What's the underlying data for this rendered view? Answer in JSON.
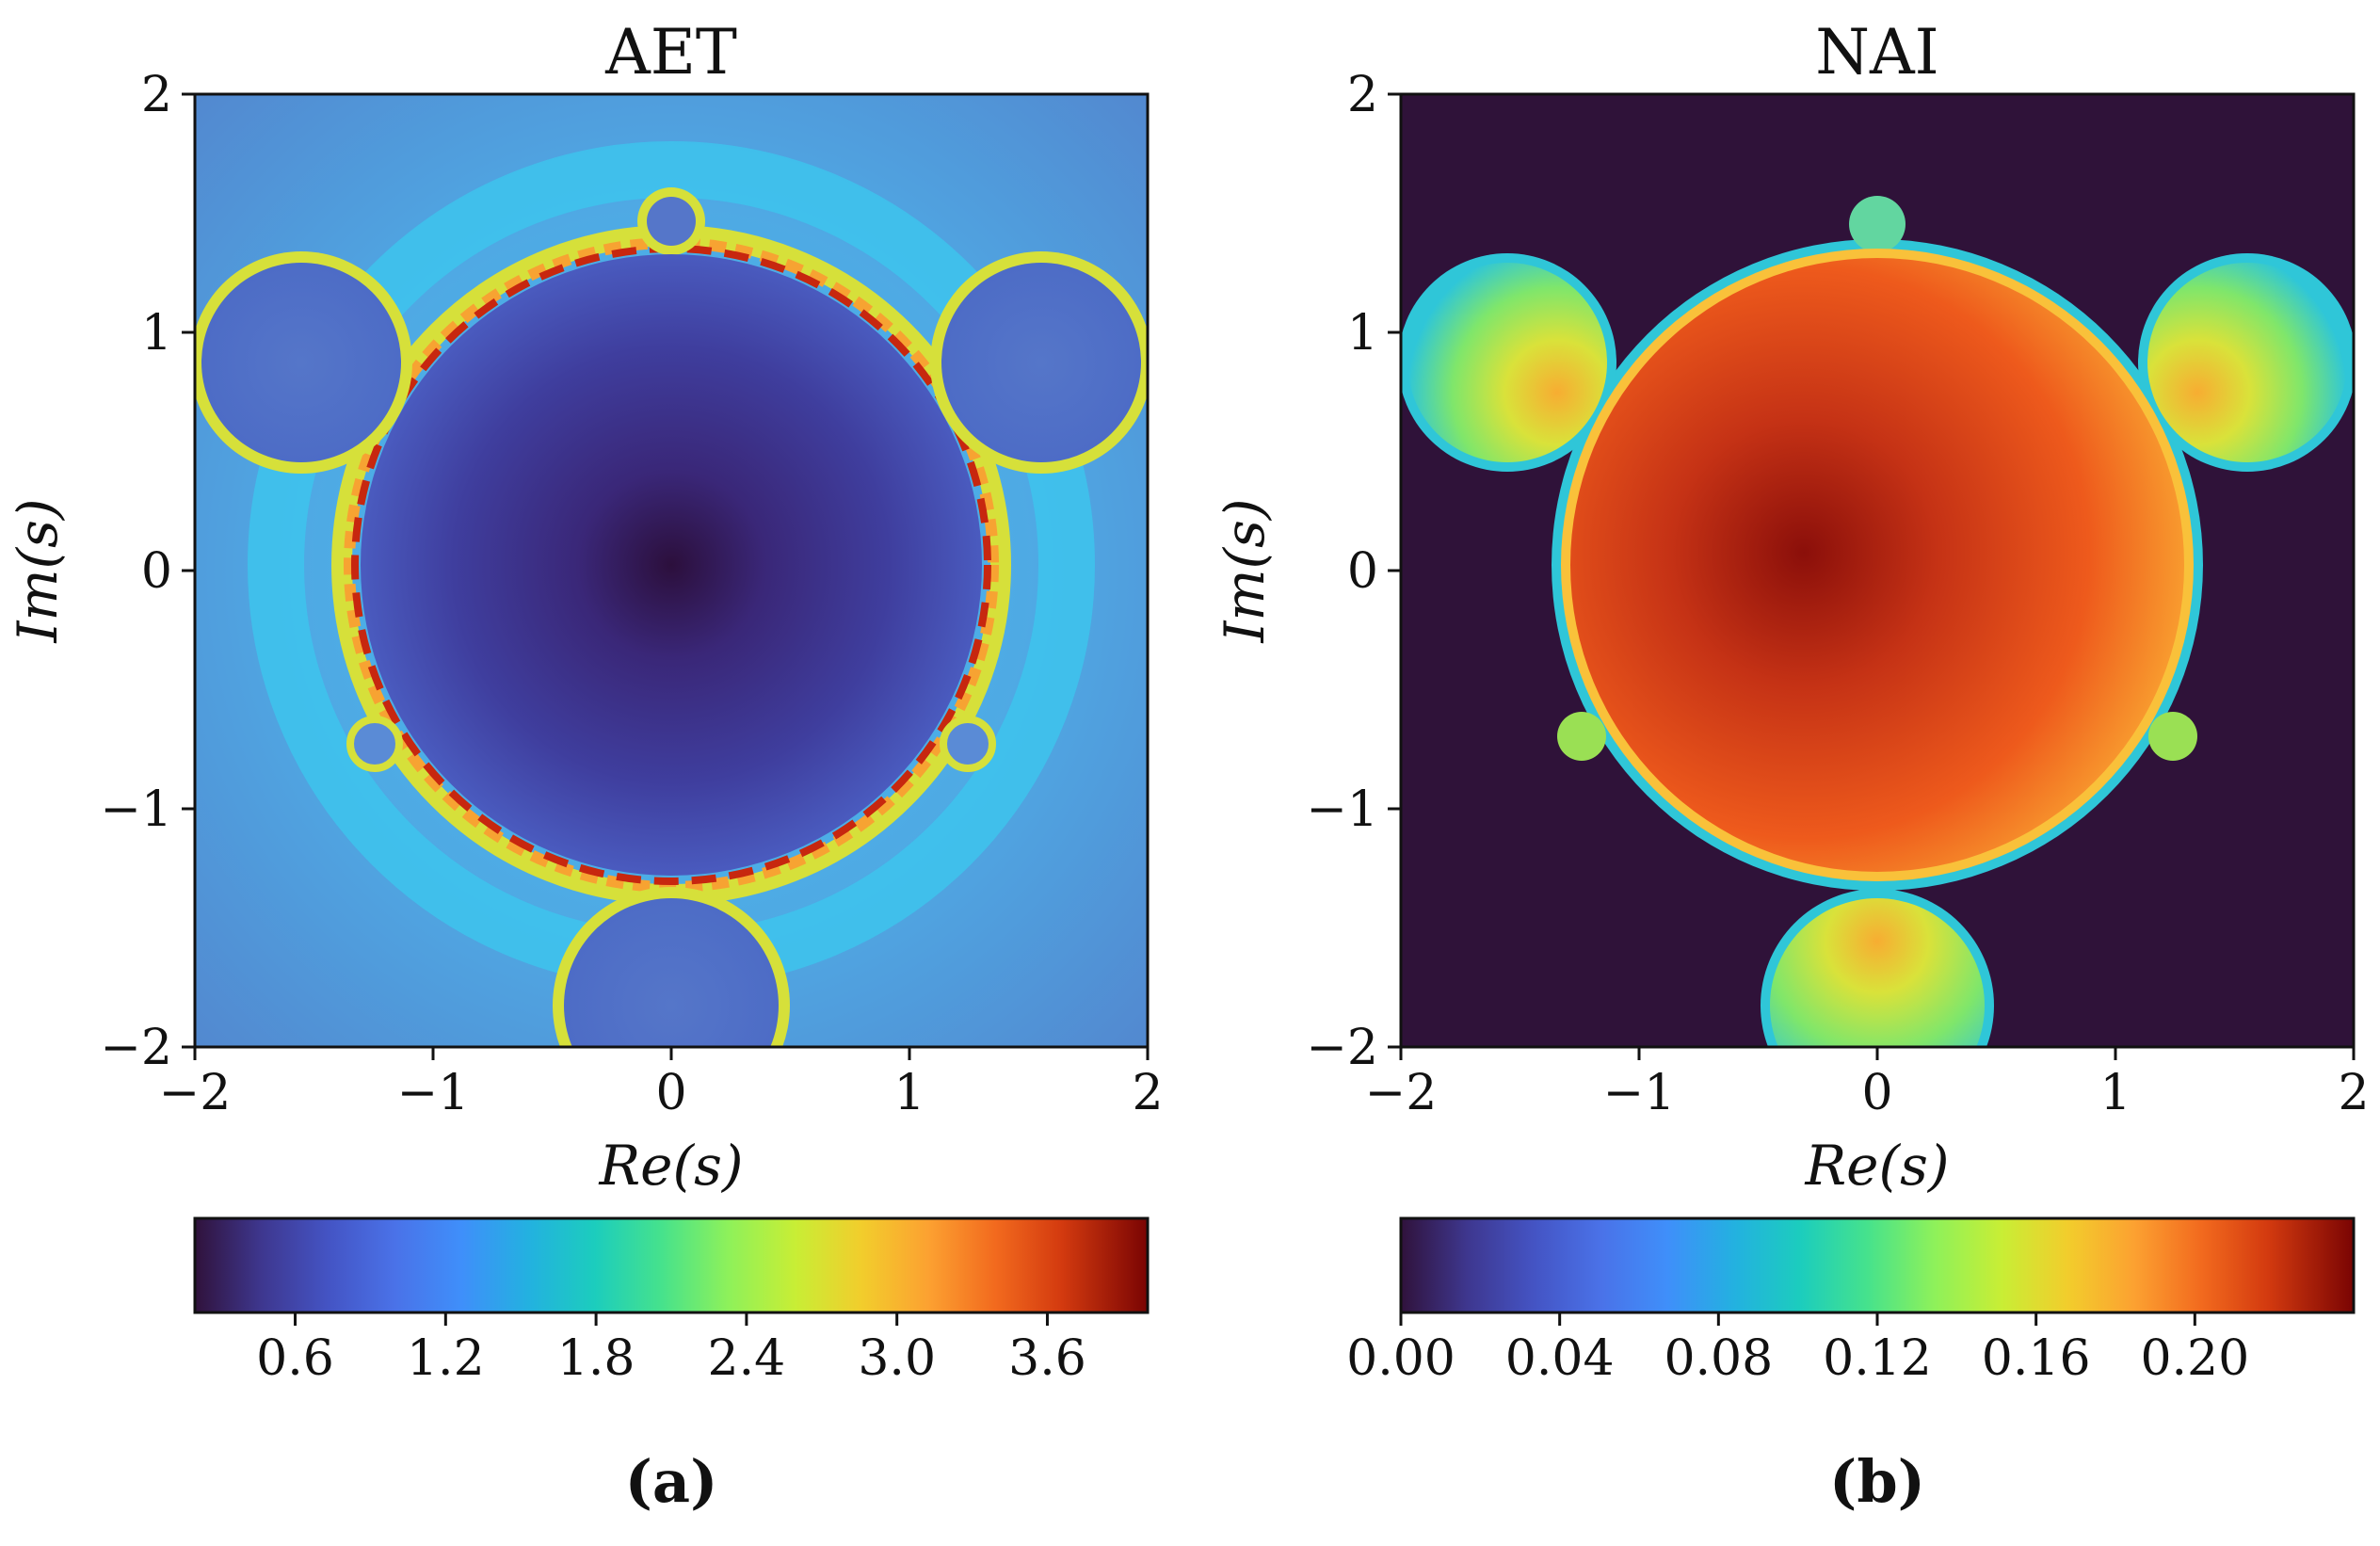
{
  "chart_data": [
    {
      "type": "heatmap",
      "panel_label": "(a)",
      "title": "AET",
      "xlabel": "Re(s)",
      "ylabel": "Im(s)",
      "xlim": [
        -2,
        2
      ],
      "ylim": [
        -2,
        2
      ],
      "xticks": [
        -2,
        -1,
        0,
        1,
        2
      ],
      "yticks": [
        -2,
        -1,
        0,
        1,
        2
      ],
      "xtick_labels": [
        "−2",
        "−1",
        "0",
        "1",
        "2"
      ],
      "ytick_labels": [
        "−2",
        "−1",
        "0",
        "1",
        "2"
      ],
      "colorbar": {
        "min": 0.2,
        "max": 4.0,
        "ticks": [
          0.6,
          1.2,
          1.8,
          2.4,
          3.0,
          3.6
        ],
        "tick_labels": [
          "0.6",
          "1.2",
          "1.8",
          "2.4",
          "3.0",
          "3.6"
        ],
        "colormap": "turbo"
      },
      "regions": [
        {
          "name": "main disk",
          "center": [
            0,
            0
          ],
          "radius": 1.32,
          "value_range": [
            0.2,
            0.9
          ]
        },
        {
          "name": "left bulb",
          "center": [
            -1.55,
            0.85
          ],
          "radius": 0.42,
          "value": 0.75
        },
        {
          "name": "right bulb",
          "center": [
            1.55,
            0.85
          ],
          "radius": 0.42,
          "value": 0.75
        },
        {
          "name": "bottom bulb",
          "center": [
            0,
            -1.85
          ],
          "radius": 0.45,
          "value": 0.75
        },
        {
          "name": "top bulb",
          "center": [
            0,
            1.45
          ],
          "radius": 0.12,
          "value": 0.8
        },
        {
          "name": "boundary band",
          "value_range": [
            2.4,
            4.0
          ]
        },
        {
          "name": "exterior",
          "value_range": [
            0.8,
            1.2
          ]
        }
      ]
    },
    {
      "type": "heatmap",
      "panel_label": "(b)",
      "title": "NAI",
      "xlabel": "Re(s)",
      "ylabel": "Im(s)",
      "xlim": [
        -2,
        2
      ],
      "ylim": [
        -2,
        2
      ],
      "xticks": [
        -2,
        -1,
        0,
        1,
        2
      ],
      "yticks": [
        -2,
        -1,
        0,
        1,
        2
      ],
      "xtick_labels": [
        "−2",
        "−1",
        "0",
        "1",
        "2"
      ],
      "ytick_labels": [
        "−2",
        "−1",
        "0",
        "1",
        "2"
      ],
      "colorbar": {
        "min": 0.0,
        "max": 0.24,
        "ticks": [
          0.0,
          0.04,
          0.08,
          0.12,
          0.16,
          0.2
        ],
        "tick_labels": [
          "0.00",
          "0.04",
          "0.08",
          "0.12",
          "0.16",
          "0.20"
        ],
        "colormap": "turbo"
      },
      "regions": [
        {
          "name": "main disk",
          "center": [
            0,
            0
          ],
          "radius": 1.32,
          "value_range": [
            0.17,
            0.24
          ]
        },
        {
          "name": "left bulb",
          "center": [
            -1.55,
            0.85
          ],
          "radius": 0.42,
          "value_range": [
            0.06,
            0.15
          ]
        },
        {
          "name": "right bulb",
          "center": [
            1.55,
            0.85
          ],
          "radius": 0.42,
          "value_range": [
            0.06,
            0.15
          ]
        },
        {
          "name": "bottom bulb",
          "center": [
            0,
            -1.85
          ],
          "radius": 0.45,
          "value_range": [
            0.06,
            0.15
          ]
        },
        {
          "name": "exterior",
          "value": 0.0
        }
      ]
    }
  ]
}
